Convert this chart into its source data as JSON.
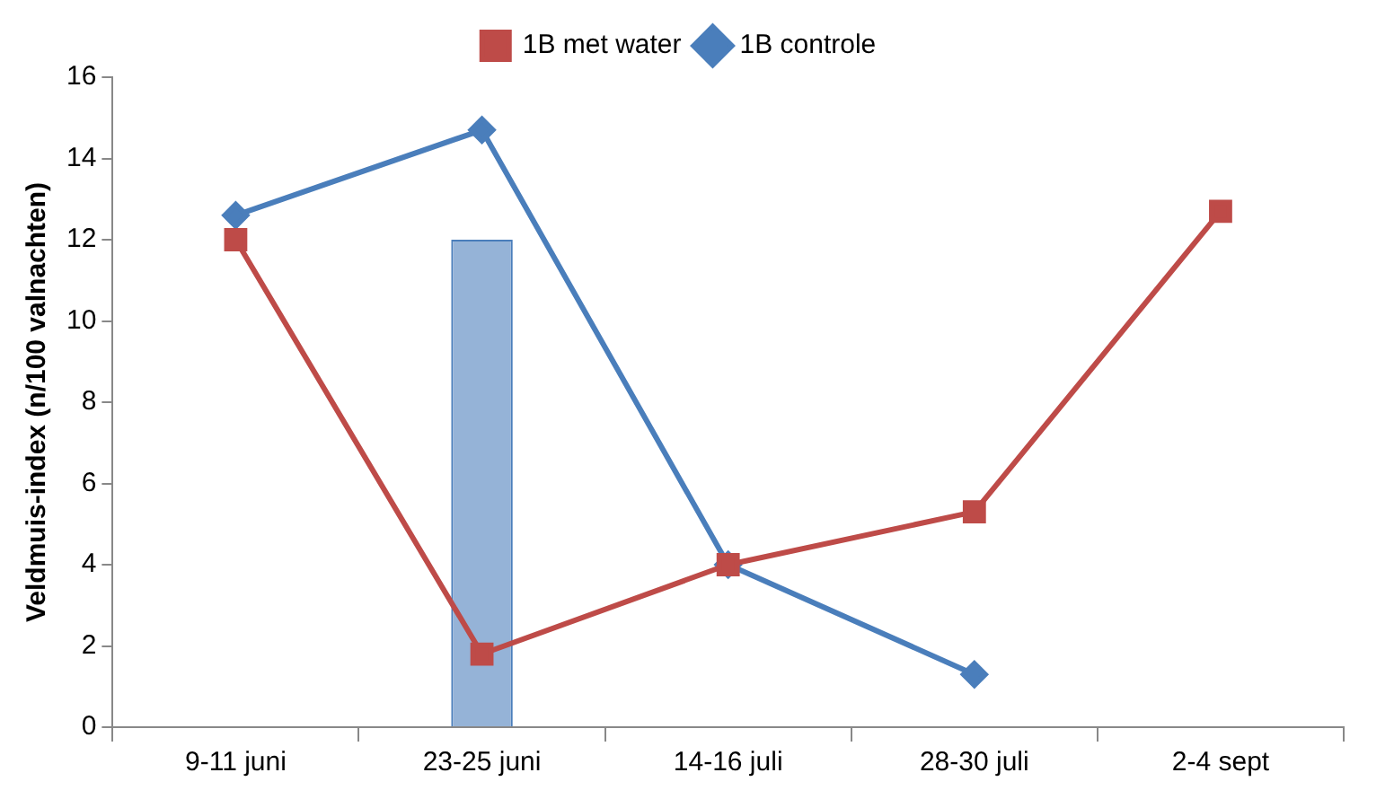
{
  "chart_data": {
    "type": "line",
    "ylabel": "Veldmuis-index (n/100 valnachten)",
    "categories": [
      "9-11 juni",
      "23-25 juni",
      "14-16 juli",
      "28-30 juli",
      "2-4 sept"
    ],
    "series": [
      {
        "type": "bar",
        "color": "#95b3d7",
        "values": [
          null,
          12,
          null,
          null,
          null
        ]
      },
      {
        "name": "1B controle",
        "color": "#4a7ebb",
        "marker": "diamond",
        "values": [
          12.6,
          14.7,
          4.0,
          1.3,
          null
        ]
      },
      {
        "name": "1B met water",
        "color": "#be4b48",
        "marker": "square",
        "values": [
          12.0,
          1.8,
          4.0,
          5.3,
          12.7
        ]
      }
    ],
    "ylim": [
      0,
      16
    ],
    "yticks": [
      0,
      2,
      4,
      6,
      8,
      10,
      12,
      14,
      16
    ],
    "grid": false,
    "legend": "top right"
  }
}
